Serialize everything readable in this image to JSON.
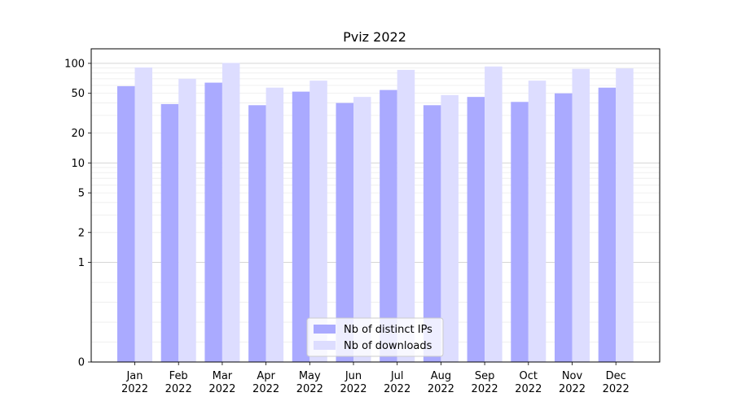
{
  "chart_data": {
    "type": "bar",
    "title": "Pviz 2022",
    "xlabel": "",
    "ylabel": "",
    "scale": "symlog",
    "ylim": [
      0,
      140
    ],
    "yticks": [
      0,
      1,
      2,
      5,
      10,
      20,
      50,
      100
    ],
    "categories": [
      [
        "Jan",
        "2022"
      ],
      [
        "Feb",
        "2022"
      ],
      [
        "Mar",
        "2022"
      ],
      [
        "Apr",
        "2022"
      ],
      [
        "May",
        "2022"
      ],
      [
        "Jun",
        "2022"
      ],
      [
        "Jul",
        "2022"
      ],
      [
        "Aug",
        "2022"
      ],
      [
        "Sep",
        "2022"
      ],
      [
        "Oct",
        "2022"
      ],
      [
        "Nov",
        "2022"
      ],
      [
        "Dec",
        "2022"
      ]
    ],
    "series": [
      {
        "name": "Nb of distinct IPs",
        "color": "#aaaaff",
        "values": [
          59,
          39,
          64,
          38,
          52,
          40,
          54,
          38,
          46,
          41,
          50,
          57
        ]
      },
      {
        "name": "Nb of downloads",
        "color": "#ddddff",
        "values": [
          91,
          70,
          101,
          57,
          67,
          46,
          86,
          48,
          93,
          67,
          88,
          89
        ]
      }
    ],
    "legend_position": "bottom-center",
    "grid": true
  }
}
